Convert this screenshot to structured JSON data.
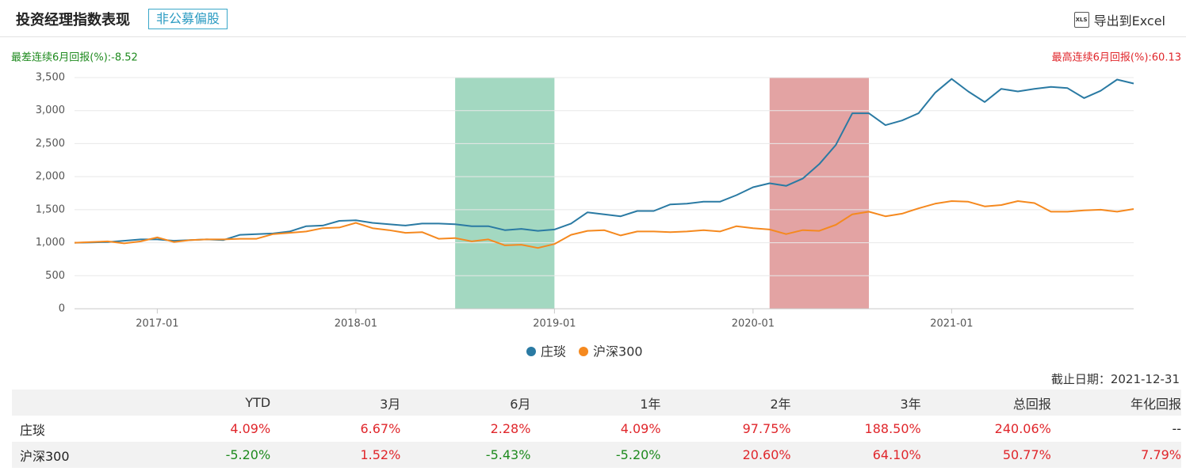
{
  "header": {
    "title": "投资经理指数表现",
    "tag": "非公募偏股",
    "export_icon_text": "XLS",
    "export": "导出到Excel"
  },
  "chart_data": {
    "type": "line",
    "worst_6m": "最差连续6月回报(%):-8.52",
    "best_6m": "最高连续6月回报(%):60.13",
    "categories": [
      "2016-08",
      "2016-09",
      "2016-10",
      "2016-11",
      "2016-12",
      "2017-01",
      "2017-02",
      "2017-03",
      "2017-04",
      "2017-05",
      "2017-06",
      "2017-07",
      "2017-08",
      "2017-09",
      "2017-10",
      "2017-11",
      "2017-12",
      "2018-01",
      "2018-02",
      "2018-03",
      "2018-04",
      "2018-05",
      "2018-06",
      "2018-07",
      "2018-08",
      "2018-09",
      "2018-10",
      "2018-11",
      "2018-12",
      "2019-01",
      "2019-02",
      "2019-03",
      "2019-04",
      "2019-05",
      "2019-06",
      "2019-07",
      "2019-08",
      "2019-09",
      "2019-10",
      "2019-11",
      "2019-12",
      "2020-01",
      "2020-02",
      "2020-03",
      "2020-04",
      "2020-05",
      "2020-06",
      "2020-07",
      "2020-08",
      "2020-09",
      "2020-10",
      "2020-11",
      "2020-12",
      "2021-01",
      "2021-02",
      "2021-03",
      "2021-04",
      "2021-05",
      "2021-06",
      "2021-07",
      "2021-08",
      "2021-09",
      "2021-10",
      "2021-11",
      "2021-12"
    ],
    "xticks": [
      "2017-01",
      "2018-01",
      "2019-01",
      "2020-01",
      "2021-01"
    ],
    "series": [
      {
        "name": "庄琰",
        "color": "#2a7aa3",
        "values": [
          1000,
          1005,
          1010,
          1030,
          1050,
          1050,
          1030,
          1040,
          1050,
          1040,
          1120,
          1130,
          1140,
          1170,
          1250,
          1260,
          1330,
          1340,
          1300,
          1280,
          1260,
          1290,
          1290,
          1280,
          1250,
          1250,
          1190,
          1210,
          1180,
          1200,
          1290,
          1460,
          1430,
          1400,
          1480,
          1480,
          1580,
          1590,
          1620,
          1620,
          1720,
          1840,
          1900,
          1860,
          1970,
          2190,
          2480,
          2960,
          2960,
          2780,
          2850,
          2960,
          3270,
          3480,
          3290,
          3130,
          3330,
          3290,
          3330,
          3360,
          3340,
          3190,
          3300,
          3470,
          3410
        ]
      },
      {
        "name": "沪深300",
        "color": "#f5891f",
        "values": [
          1000,
          1010,
          1020,
          990,
          1020,
          1080,
          1010,
          1040,
          1050,
          1050,
          1060,
          1060,
          1130,
          1150,
          1170,
          1220,
          1230,
          1300,
          1220,
          1190,
          1150,
          1160,
          1060,
          1070,
          1020,
          1050,
          960,
          970,
          920,
          980,
          1120,
          1180,
          1190,
          1110,
          1170,
          1170,
          1160,
          1170,
          1190,
          1170,
          1250,
          1220,
          1200,
          1130,
          1190,
          1180,
          1270,
          1430,
          1470,
          1400,
          1440,
          1520,
          1590,
          1630,
          1620,
          1550,
          1570,
          1630,
          1600,
          1470,
          1470,
          1490,
          1500,
          1470,
          1510
        ]
      }
    ],
    "bands": [
      {
        "start": "2018-07",
        "end": "2019-01",
        "color": "#a3d8c1"
      },
      {
        "start": "2020-02",
        "end": "2020-08",
        "color": "#e3a3a3"
      }
    ],
    "ylim": [
      0,
      3500
    ],
    "yticks": [
      0,
      500,
      {
        "value": 1000,
        "label": "1,000"
      },
      {
        "value": 1500,
        "label": "1,500"
      },
      {
        "value": 2000,
        "label": "2,000"
      },
      {
        "value": 2500,
        "label": "2,500"
      },
      {
        "value": 3000,
        "label": "3,000"
      },
      {
        "value": 3500,
        "label": "3,500"
      }
    ],
    "grid": true,
    "legend": "bottom"
  },
  "table": {
    "as_of": "截止日期：2021-12-31",
    "columns": [
      "YTD",
      "3月",
      "6月",
      "1年",
      "2年",
      "3年",
      "总回报",
      "年化回报"
    ],
    "rows": [
      {
        "name": "庄琰",
        "cells": [
          "4.09%",
          "6.67%",
          "2.28%",
          "4.09%",
          "97.75%",
          "188.50%",
          "240.06%",
          "--"
        ]
      },
      {
        "name": "沪深300",
        "cells": [
          "-5.20%",
          "1.52%",
          "-5.43%",
          "-5.20%",
          "20.60%",
          "64.10%",
          "50.77%",
          "7.79%"
        ]
      }
    ]
  }
}
